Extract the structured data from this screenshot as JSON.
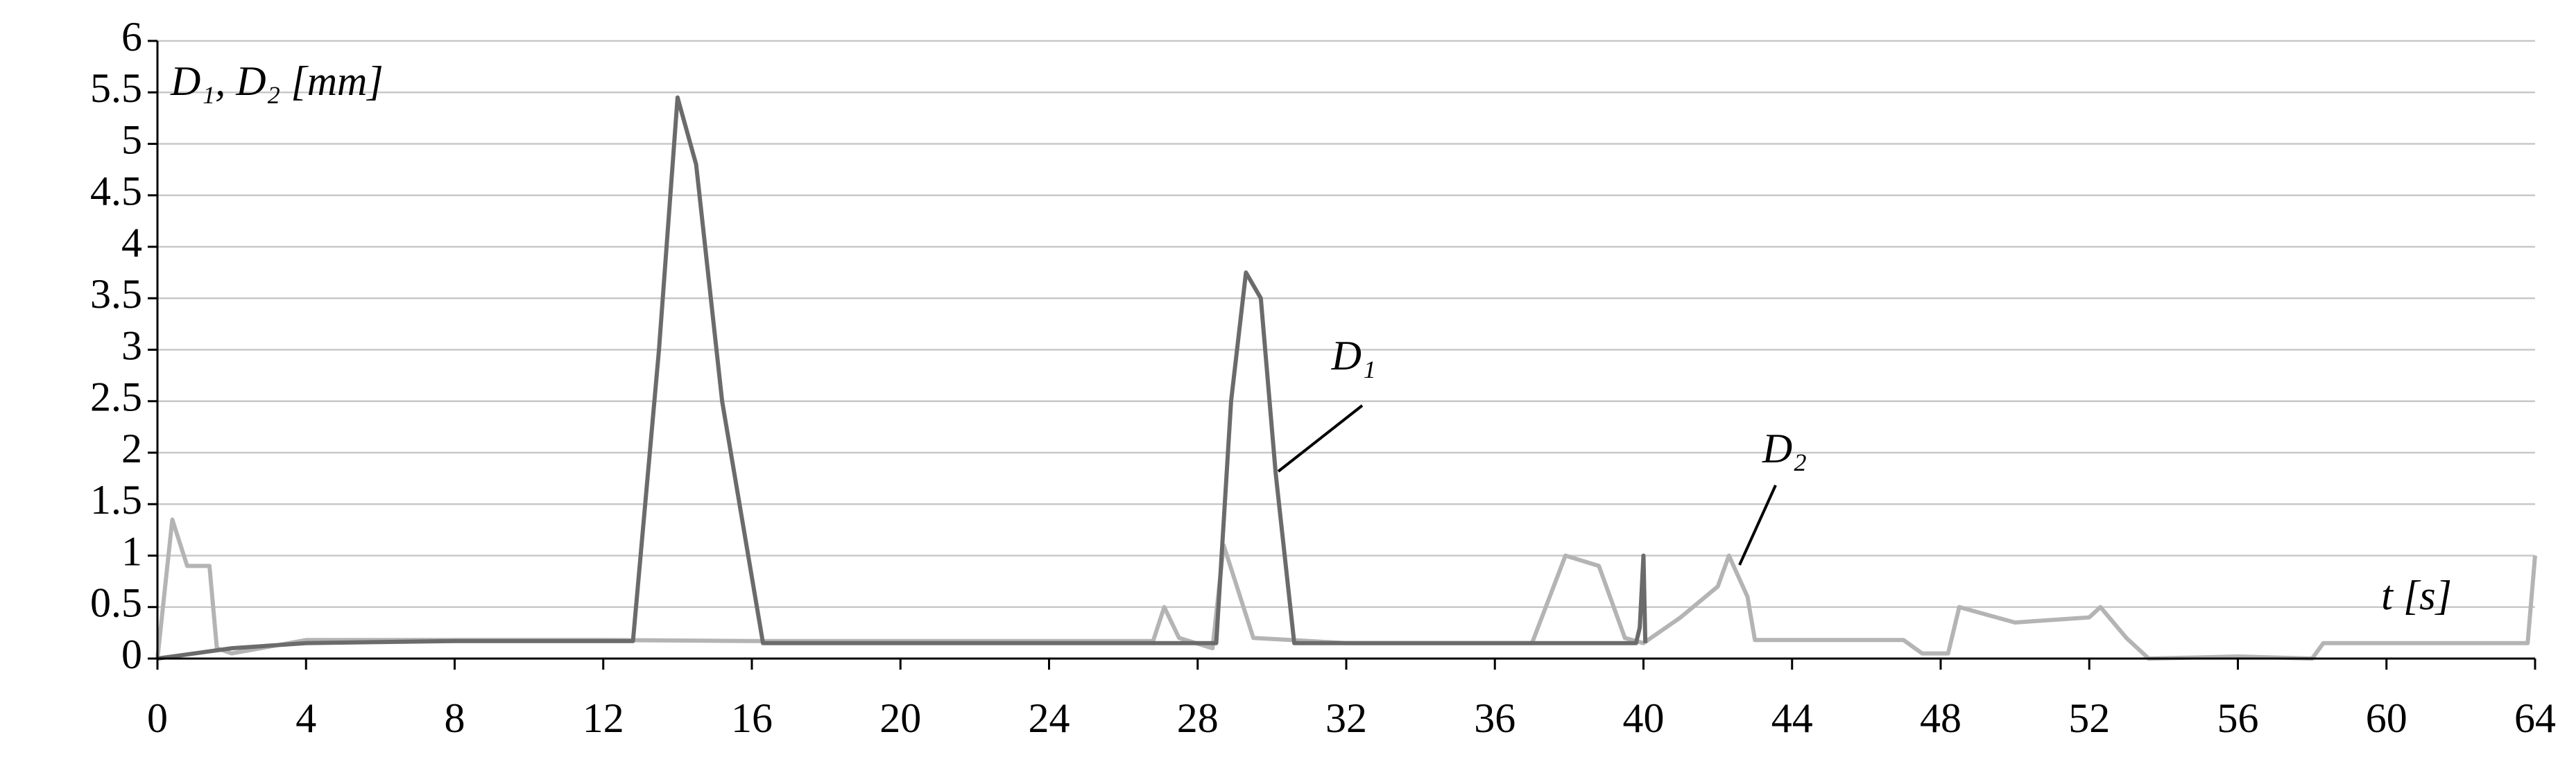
{
  "chart_data": {
    "type": "line",
    "y_label": "D₁, D₂ [mm]",
    "x_label": "t [s]",
    "xlim": [
      0,
      64
    ],
    "xticks": [
      0,
      4,
      8,
      12,
      16,
      20,
      24,
      28,
      32,
      36,
      40,
      44,
      48,
      52,
      56,
      60,
      64
    ],
    "ylim": [
      0,
      6
    ],
    "yticks": [
      0,
      0.5,
      1,
      1.5,
      2,
      2.5,
      3,
      3.5,
      4,
      4.5,
      5,
      5.5,
      6
    ],
    "grid": true,
    "annotations": [
      {
        "text": "D₁",
        "x": 32.2,
        "y": 2.9
      },
      {
        "text": "D₂",
        "x": 43.8,
        "y": 2.0
      }
    ],
    "series": [
      {
        "name": "D₁",
        "color": "#6b6b6b",
        "x": [
          0,
          2,
          4,
          8,
          12.8,
          13.5,
          14,
          14.5,
          15.2,
          16.3,
          20,
          24,
          28.5,
          28.9,
          29.3,
          29.7,
          30.1,
          30.6,
          34,
          39.8,
          39.9,
          40,
          40.05
        ],
        "values": [
          0,
          0.1,
          0.15,
          0.17,
          0.17,
          3.0,
          5.45,
          4.8,
          2.5,
          0.15,
          0.15,
          0.15,
          0.15,
          2.5,
          3.75,
          3.5,
          1.8,
          0.15,
          0.15,
          0.15,
          0.3,
          1.0,
          0.15
        ]
      },
      {
        "name": "D₂",
        "color": "#b4b4b4",
        "x": [
          0,
          0.4,
          0.8,
          1.4,
          1.6,
          2,
          4,
          12,
          16,
          26.8,
          27.1,
          27.5,
          28.4,
          28.7,
          29.5,
          32,
          37,
          37.9,
          38.8,
          39.5,
          40,
          41,
          42,
          42.3,
          42.8,
          43,
          47,
          47.5,
          48.2,
          48.5,
          50,
          52,
          52.3,
          53,
          53.6,
          56,
          58,
          58.3,
          63.8,
          64
        ],
        "values": [
          0,
          1.35,
          0.9,
          0.9,
          0.1,
          0.05,
          0.18,
          0.18,
          0.17,
          0.17,
          0.5,
          0.2,
          0.1,
          1.1,
          0.2,
          0.15,
          0.15,
          1.0,
          0.9,
          0.2,
          0.15,
          0.4,
          0.7,
          1.0,
          0.6,
          0.18,
          0.18,
          0.05,
          0.05,
          0.5,
          0.35,
          0.4,
          0.5,
          0.2,
          0,
          0.02,
          0,
          0.15,
          0.15,
          1.0
        ]
      }
    ]
  }
}
